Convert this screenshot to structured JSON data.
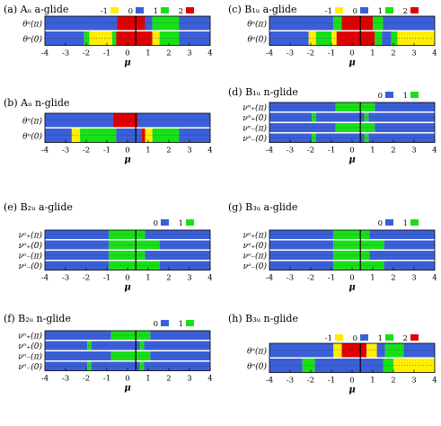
{
  "colors": {
    "-1": "#ffee00",
    "0": "#3b5fd6",
    "1": "#18e018",
    "2": "#e00000"
  },
  "chart_data": [
    {
      "id": "a",
      "type": "heatmap",
      "title": "(a) Aᵤ a-glide",
      "xlabel": "μ",
      "xlim": [
        -4,
        4
      ],
      "xticks": [
        "-4",
        "-3",
        "-2",
        "-1",
        "0",
        "1",
        "2",
        "3",
        "4"
      ],
      "legend": [
        {
          "label": "-1",
          "value": -1
        },
        {
          "label": "0",
          "value": 0
        },
        {
          "label": "1",
          "value": 1
        },
        {
          "label": "2",
          "value": 2
        }
      ],
      "rows": [
        {
          "label": "θᵃ(π)",
          "segments": [
            [
              -4,
              -0.5,
              0
            ],
            [
              -0.5,
              0.85,
              2
            ],
            [
              0.85,
              1.2,
              0
            ],
            [
              1.2,
              2.5,
              1
            ],
            [
              2.5,
              4,
              0
            ]
          ]
        },
        {
          "label": "θᵃ(0)",
          "segments": [
            [
              -4,
              -2.1,
              0
            ],
            [
              -2.1,
              -1.85,
              1
            ],
            [
              -1.85,
              -0.75,
              -1
            ],
            [
              -0.75,
              -0.55,
              1
            ],
            [
              -0.55,
              1.2,
              2
            ],
            [
              1.2,
              1.55,
              -1
            ],
            [
              1.55,
              2.5,
              1
            ],
            [
              2.5,
              4,
              0
            ]
          ]
        }
      ],
      "vline": 0.4
    },
    {
      "id": "b",
      "type": "heatmap",
      "title": "(b) Aᵤ n-glide",
      "xlabel": "μ",
      "xlim": [
        -4,
        4
      ],
      "xticks": [
        "-4",
        "-3",
        "-2",
        "-1",
        "0",
        "1",
        "2",
        "3",
        "4"
      ],
      "legend": [],
      "rows": [
        {
          "label": "θⁿ(π)",
          "segments": [
            [
              -4,
              -0.7,
              0
            ],
            [
              -0.7,
              0.5,
              2
            ],
            [
              0.5,
              4,
              0
            ]
          ]
        },
        {
          "label": "θⁿ(0)",
          "segments": [
            [
              -4,
              -2.7,
              0
            ],
            [
              -2.7,
              -2.3,
              -1
            ],
            [
              -2.3,
              -0.55,
              1
            ],
            [
              -0.55,
              0.7,
              0
            ],
            [
              0.7,
              0.85,
              2
            ],
            [
              0.85,
              1.2,
              -1
            ],
            [
              1.2,
              2.5,
              1
            ],
            [
              2.5,
              4,
              0
            ]
          ]
        }
      ],
      "vline": 0.4
    },
    {
      "id": "c",
      "type": "heatmap",
      "title": "(c) B₁ᵤ a-glide",
      "xlabel": "μ",
      "xlim": [
        -4,
        4
      ],
      "xticks": [
        "-4",
        "-3",
        "-2",
        "-1",
        "0",
        "1",
        "2",
        "3",
        "4"
      ],
      "legend": [
        {
          "label": "-1",
          "value": -1
        },
        {
          "label": "0",
          "value": 0
        },
        {
          "label": "1",
          "value": 1
        },
        {
          "label": "2",
          "value": 2
        }
      ],
      "rows": [
        {
          "label": "θᵃ(π)",
          "segments": [
            [
              -4,
              -0.9,
              0
            ],
            [
              -0.9,
              -0.5,
              1
            ],
            [
              -0.5,
              1.0,
              2
            ],
            [
              1.0,
              1.5,
              1
            ],
            [
              1.5,
              4,
              0
            ]
          ]
        },
        {
          "label": "θᵃ(0)",
          "segments": [
            [
              -4,
              -2.1,
              0
            ],
            [
              -2.1,
              -1.75,
              -1
            ],
            [
              -1.75,
              -1.0,
              1
            ],
            [
              -1.0,
              -0.75,
              -1
            ],
            [
              -0.75,
              0.2,
              2
            ],
            [
              0.2,
              1.1,
              2
            ],
            [
              1.1,
              1.45,
              1
            ],
            [
              1.45,
              1.9,
              0
            ],
            [
              1.9,
              2.2,
              1
            ],
            [
              2.2,
              4,
              -1
            ]
          ]
        }
      ],
      "vline": 0.4
    },
    {
      "id": "d",
      "type": "heatmap",
      "title": "(d) B₁ᵤ n-glide",
      "xlabel": "μ",
      "xlim": [
        -4,
        4
      ],
      "xticks": [
        "-4",
        "-3",
        "-2",
        "-1",
        "0",
        "1",
        "2",
        "3",
        "4"
      ],
      "legend": [
        {
          "label": "0",
          "value": 0
        },
        {
          "label": "1",
          "value": 1
        }
      ],
      "rows": [
        {
          "label": "νⁿ₊(π)",
          "segments": [
            [
              -4,
              -0.8,
              0
            ],
            [
              -0.8,
              1.1,
              1
            ],
            [
              1.1,
              4,
              0
            ]
          ]
        },
        {
          "label": "νⁿ₊(0)",
          "segments": [
            [
              -4,
              -1.95,
              0
            ],
            [
              -1.95,
              -1.75,
              1
            ],
            [
              -1.75,
              0.6,
              0
            ],
            [
              0.6,
              0.8,
              1
            ],
            [
              0.8,
              4,
              0
            ]
          ]
        },
        {
          "label": "νⁿ₋(π)",
          "segments": [
            [
              -4,
              -0.8,
              0
            ],
            [
              -0.8,
              1.1,
              1
            ],
            [
              1.1,
              4,
              0
            ]
          ]
        },
        {
          "label": "νⁿ₋(0)",
          "segments": [
            [
              -4,
              -1.95,
              0
            ],
            [
              -1.95,
              -1.75,
              1
            ],
            [
              -1.75,
              0.6,
              0
            ],
            [
              0.6,
              0.8,
              1
            ],
            [
              0.8,
              4,
              0
            ]
          ]
        }
      ],
      "vline": 0.4
    },
    {
      "id": "e",
      "type": "heatmap",
      "title": "(e) B₂ᵤ a-glide",
      "xlabel": "μ",
      "xlim": [
        -4,
        4
      ],
      "xticks": [
        "-4",
        "-3",
        "-2",
        "-1",
        "0",
        "1",
        "2",
        "3",
        "4"
      ],
      "legend": [
        {
          "label": "0",
          "value": 0
        },
        {
          "label": "1",
          "value": 1
        }
      ],
      "rows": [
        {
          "label": "νᵃ₊(π)",
          "segments": [
            [
              -4,
              -0.9,
              0
            ],
            [
              -0.9,
              0.85,
              1
            ],
            [
              0.85,
              4,
              0
            ]
          ]
        },
        {
          "label": "νᵃ₊(0)",
          "segments": [
            [
              -4,
              -0.9,
              0
            ],
            [
              -0.9,
              1.55,
              1
            ],
            [
              1.55,
              4,
              0
            ]
          ]
        },
        {
          "label": "νᵃ₋(π)",
          "segments": [
            [
              -4,
              -0.9,
              0
            ],
            [
              -0.9,
              0.85,
              1
            ],
            [
              0.85,
              4,
              0
            ]
          ]
        },
        {
          "label": "νᵃ₋(0)",
          "segments": [
            [
              -4,
              -0.9,
              0
            ],
            [
              -0.9,
              1.55,
              1
            ],
            [
              1.55,
              4,
              0
            ]
          ]
        }
      ],
      "vline": 0.4
    },
    {
      "id": "f",
      "type": "heatmap",
      "title": "(f) B₂ᵤ n-glide",
      "xlabel": "μ",
      "xlim": [
        -4,
        4
      ],
      "xticks": [
        "-4",
        "-3",
        "-2",
        "-1",
        "0",
        "1",
        "2",
        "3",
        "4"
      ],
      "legend": [
        {
          "label": "0",
          "value": 0
        },
        {
          "label": "1",
          "value": 1
        }
      ],
      "rows": [
        {
          "label": "νⁿ₊(π)",
          "segments": [
            [
              -4,
              -0.8,
              0
            ],
            [
              -0.8,
              1.1,
              1
            ],
            [
              1.1,
              4,
              0
            ]
          ]
        },
        {
          "label": "νⁿ₊(0)",
          "segments": [
            [
              -4,
              -1.95,
              0
            ],
            [
              -1.95,
              -1.75,
              1
            ],
            [
              -1.75,
              0.6,
              0
            ],
            [
              0.6,
              0.8,
              1
            ],
            [
              0.8,
              4,
              0
            ]
          ]
        },
        {
          "label": "νⁿ₋(π)",
          "segments": [
            [
              -4,
              -0.8,
              0
            ],
            [
              -0.8,
              1.1,
              1
            ],
            [
              1.1,
              4,
              0
            ]
          ]
        },
        {
          "label": "νⁿ₋(0)",
          "segments": [
            [
              -4,
              -1.95,
              0
            ],
            [
              -1.95,
              -1.75,
              1
            ],
            [
              -1.75,
              0.6,
              0
            ],
            [
              0.6,
              0.8,
              1
            ],
            [
              0.8,
              4,
              0
            ]
          ]
        }
      ],
      "vline": 0.4
    },
    {
      "id": "g",
      "type": "heatmap",
      "title": "(g) B₃ᵤ a-glide",
      "xlabel": "μ",
      "xlim": [
        -4,
        4
      ],
      "xticks": [
        "-4",
        "-3",
        "-2",
        "-1",
        "0",
        "1",
        "2",
        "3",
        "4"
      ],
      "legend": [
        {
          "label": "0",
          "value": 0
        },
        {
          "label": "1",
          "value": 1
        }
      ],
      "rows": [
        {
          "label": "νᵃ₊(π)",
          "segments": [
            [
              -4,
              -0.9,
              0
            ],
            [
              -0.9,
              0.85,
              1
            ],
            [
              0.85,
              4,
              0
            ]
          ]
        },
        {
          "label": "νᵃ₊(0)",
          "segments": [
            [
              -4,
              -0.9,
              0
            ],
            [
              -0.9,
              1.55,
              1
            ],
            [
              1.55,
              4,
              0
            ]
          ]
        },
        {
          "label": "νᵃ₋(π)",
          "segments": [
            [
              -4,
              -0.9,
              0
            ],
            [
              -0.9,
              0.85,
              1
            ],
            [
              0.85,
              4,
              0
            ]
          ]
        },
        {
          "label": "νᵃ₋(0)",
          "segments": [
            [
              -4,
              -0.9,
              0
            ],
            [
              -0.9,
              1.55,
              1
            ],
            [
              1.55,
              4,
              0
            ]
          ]
        }
      ],
      "vline": 0.4
    },
    {
      "id": "h",
      "type": "heatmap",
      "title": "(h) B₃ᵤ n-glide",
      "xlabel": "μ",
      "xlim": [
        -4,
        4
      ],
      "xticks": [
        "-4",
        "-3",
        "-2",
        "-1",
        "0",
        "1",
        "2",
        "3",
        "4"
      ],
      "legend": [
        {
          "label": "-1",
          "value": -1
        },
        {
          "label": "0",
          "value": 0
        },
        {
          "label": "1",
          "value": 1
        },
        {
          "label": "2",
          "value": 2
        }
      ],
      "rows": [
        {
          "label": "θⁿ(π)",
          "segments": [
            [
              -4,
              -0.9,
              0
            ],
            [
              -0.9,
              -0.5,
              -1
            ],
            [
              -0.5,
              0.7,
              2
            ],
            [
              0.7,
              1.2,
              -1
            ],
            [
              1.2,
              1.6,
              0
            ],
            [
              1.6,
              2.5,
              1
            ],
            [
              2.5,
              4,
              0
            ]
          ]
        },
        {
          "label": "θⁿ(0)",
          "segments": [
            [
              -4,
              -2.4,
              0
            ],
            [
              -2.4,
              -1.8,
              1
            ],
            [
              -1.8,
              1.5,
              0
            ],
            [
              1.5,
              2.0,
              1
            ],
            [
              2.0,
              4,
              -1
            ]
          ]
        }
      ],
      "vline": 0.4
    }
  ]
}
